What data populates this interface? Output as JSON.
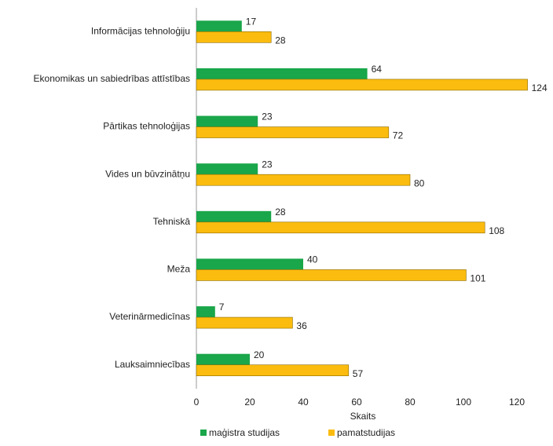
{
  "chart_data": {
    "type": "hbar",
    "categories": [
      "Informācijas tehnoloģiju",
      "Ekonomikas un sabiedrības attīstības",
      "Pārtikas tehnoloģijas",
      "Vides un būvzinātņu",
      "Tehniskā",
      "Meža",
      "Veterinārmedicīnas",
      "Lauksaimniecības"
    ],
    "series": [
      {
        "name": "maģistra studijas",
        "color": "#1aa64a",
        "values": [
          17,
          64,
          23,
          23,
          28,
          40,
          7,
          20
        ]
      },
      {
        "name": "pamatstudijas",
        "color": "#fbbc0f",
        "values": [
          28,
          124,
          72,
          80,
          108,
          101,
          36,
          57
        ]
      }
    ],
    "xlabel": "Skaits",
    "xlim": [
      0,
      125
    ],
    "xticks": [
      0,
      20,
      40,
      60,
      80,
      100,
      120
    ],
    "grid": false,
    "legend": "bottom"
  }
}
